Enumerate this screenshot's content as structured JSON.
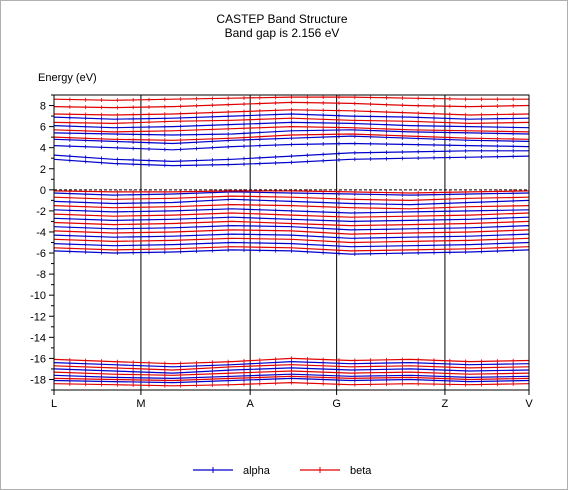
{
  "chart_data": {
    "type": "line",
    "title": "CASTEP Band Structure",
    "subtitle": "Band gap is 2.156 eV",
    "ylabel": "Energy (eV)",
    "ylim": [
      -19,
      9
    ],
    "yticks": [
      8,
      6,
      4,
      2,
      0,
      -2,
      -4,
      -6,
      -8,
      -10,
      -12,
      -14,
      -16,
      -18
    ],
    "fermi_level": 0,
    "kpoint_labels": [
      "L",
      "M",
      "A",
      "G",
      "Z",
      "V"
    ],
    "kpoint_positions": [
      0,
      0.183,
      0.413,
      0.595,
      0.823,
      1.0
    ],
    "legend_position": "bottom-center",
    "series": [
      {
        "name": "alpha",
        "color": "#0000cc",
        "bands": [
          [
            2.9,
            2.5,
            2.3,
            2.4,
            2.6,
            2.9,
            3.0,
            3.1,
            3.2
          ],
          [
            3.3,
            2.9,
            2.7,
            2.9,
            3.2,
            3.5,
            3.6,
            3.7,
            3.7
          ],
          [
            4.2,
            4.0,
            3.8,
            4.1,
            4.3,
            4.4,
            4.3,
            4.2,
            4.1
          ],
          [
            4.8,
            4.6,
            4.4,
            4.7,
            4.9,
            5.1,
            4.9,
            4.7,
            4.6
          ],
          [
            5.4,
            5.3,
            5.2,
            5.3,
            5.6,
            5.7,
            5.5,
            5.4,
            5.3
          ],
          [
            6.1,
            5.9,
            6.0,
            6.2,
            6.4,
            6.3,
            6.1,
            6.0,
            5.9
          ],
          [
            6.9,
            6.7,
            6.8,
            7.0,
            7.2,
            7.0,
            6.9,
            6.7,
            6.8
          ],
          [
            -0.3,
            -0.5,
            -0.4,
            -0.2,
            -0.3,
            -0.4,
            -0.5,
            -0.4,
            -0.3
          ],
          [
            -1.1,
            -1.3,
            -1.2,
            -0.9,
            -1.1,
            -1.3,
            -1.4,
            -1.2,
            -1.0
          ],
          [
            -1.9,
            -2.1,
            -2.0,
            -1.8,
            -2.0,
            -2.2,
            -2.1,
            -2.0,
            -1.9
          ],
          [
            -2.7,
            -2.9,
            -2.8,
            -2.6,
            -2.8,
            -3.0,
            -2.9,
            -2.8,
            -2.6
          ],
          [
            -3.5,
            -3.7,
            -3.6,
            -3.4,
            -3.5,
            -3.8,
            -3.7,
            -3.6,
            -3.4
          ],
          [
            -4.3,
            -4.5,
            -4.4,
            -4.2,
            -4.3,
            -4.6,
            -4.5,
            -4.4,
            -4.2
          ],
          [
            -5.1,
            -5.3,
            -5.2,
            -5.0,
            -5.1,
            -5.4,
            -5.3,
            -5.2,
            -5.0
          ],
          [
            -5.8,
            -6.0,
            -5.9,
            -5.7,
            -5.8,
            -6.1,
            -6.0,
            -5.9,
            -5.7
          ],
          [
            -16.4,
            -16.6,
            -16.8,
            -16.6,
            -16.3,
            -16.5,
            -16.4,
            -16.6,
            -16.5
          ],
          [
            -17.0,
            -17.2,
            -17.4,
            -17.1,
            -16.9,
            -17.1,
            -17.0,
            -17.2,
            -17.1
          ],
          [
            -17.6,
            -17.8,
            -17.9,
            -17.7,
            -17.5,
            -17.7,
            -17.6,
            -17.8,
            -17.7
          ],
          [
            -18.1,
            -18.2,
            -18.3,
            -18.1,
            -17.9,
            -18.1,
            -18.0,
            -18.2,
            -18.1
          ]
        ]
      },
      {
        "name": "beta",
        "color": "#e00000",
        "bands": [
          [
            5.0,
            4.8,
            4.7,
            4.9,
            5.2,
            5.3,
            5.1,
            4.9,
            4.8
          ],
          [
            5.7,
            5.5,
            5.6,
            5.8,
            6.0,
            5.9,
            5.7,
            5.6,
            5.5
          ],
          [
            6.4,
            6.3,
            6.5,
            6.6,
            6.8,
            6.6,
            6.5,
            6.3,
            6.4
          ],
          [
            7.2,
            7.1,
            7.2,
            7.4,
            7.6,
            7.5,
            7.3,
            7.1,
            7.2
          ],
          [
            7.9,
            7.8,
            7.9,
            8.1,
            8.3,
            8.2,
            8.0,
            7.9,
            8.0
          ],
          [
            8.6,
            8.5,
            8.6,
            8.7,
            8.8,
            8.8,
            8.7,
            8.6,
            8.6
          ],
          [
            -0.1,
            -0.2,
            -0.2,
            -0.1,
            -0.1,
            -0.2,
            -0.3,
            -0.2,
            -0.1
          ],
          [
            -0.7,
            -0.9,
            -0.8,
            -0.6,
            -0.7,
            -0.9,
            -1.0,
            -0.8,
            -0.7
          ],
          [
            -1.5,
            -1.7,
            -1.6,
            -1.4,
            -1.5,
            -1.7,
            -1.8,
            -1.6,
            -1.5
          ],
          [
            -2.3,
            -2.5,
            -2.4,
            -2.2,
            -2.4,
            -2.6,
            -2.5,
            -2.4,
            -2.2
          ],
          [
            -3.1,
            -3.3,
            -3.2,
            -3.0,
            -3.2,
            -3.4,
            -3.3,
            -3.2,
            -3.0
          ],
          [
            -3.9,
            -4.1,
            -4.0,
            -3.8,
            -3.9,
            -4.2,
            -4.1,
            -4.0,
            -3.8
          ],
          [
            -4.7,
            -4.9,
            -4.8,
            -4.6,
            -4.7,
            -5.0,
            -4.9,
            -4.8,
            -4.6
          ],
          [
            -5.5,
            -5.7,
            -5.6,
            -5.4,
            -5.5,
            -5.8,
            -5.7,
            -5.6,
            -5.4
          ],
          [
            -16.1,
            -16.3,
            -16.5,
            -16.3,
            -16.0,
            -16.2,
            -16.1,
            -16.3,
            -16.2
          ],
          [
            -16.7,
            -16.9,
            -17.1,
            -16.8,
            -16.6,
            -16.8,
            -16.7,
            -16.9,
            -16.8
          ],
          [
            -17.3,
            -17.5,
            -17.6,
            -17.4,
            -17.2,
            -17.4,
            -17.3,
            -17.5,
            -17.4
          ],
          [
            -17.9,
            -18.0,
            -18.1,
            -17.9,
            -17.7,
            -17.9,
            -17.8,
            -18.0,
            -17.9
          ],
          [
            -18.4,
            -18.5,
            -18.6,
            -18.5,
            -18.3,
            -18.5,
            -18.4,
            -18.5,
            -18.4
          ]
        ]
      }
    ]
  }
}
